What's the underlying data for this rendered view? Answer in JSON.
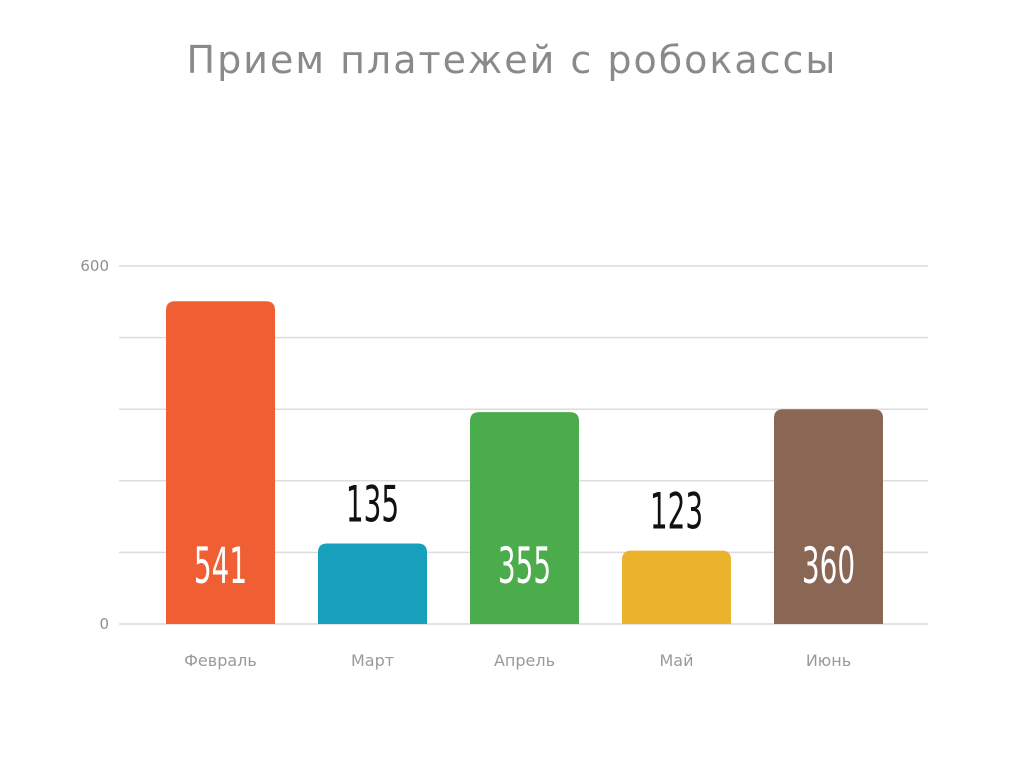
{
  "chart_data": {
    "type": "bar",
    "title": "Прием платежей с робокассы",
    "xlabel": "",
    "ylabel": "",
    "categories": [
      "Февраль",
      "Март",
      "Апрель",
      "Май",
      "Июнь"
    ],
    "values": [
      541,
      135,
      355,
      123,
      360
    ],
    "colors": [
      "#ef5f33",
      "#16a0bc",
      "#4aac4b",
      "#ebb22b",
      "#8a6654"
    ],
    "ylim": [
      0,
      600
    ],
    "ytick_labels": [
      "600",
      "0"
    ],
    "value_labels_inside": [
      true,
      false,
      true,
      false,
      true
    ],
    "grid": true,
    "legend": "none"
  }
}
